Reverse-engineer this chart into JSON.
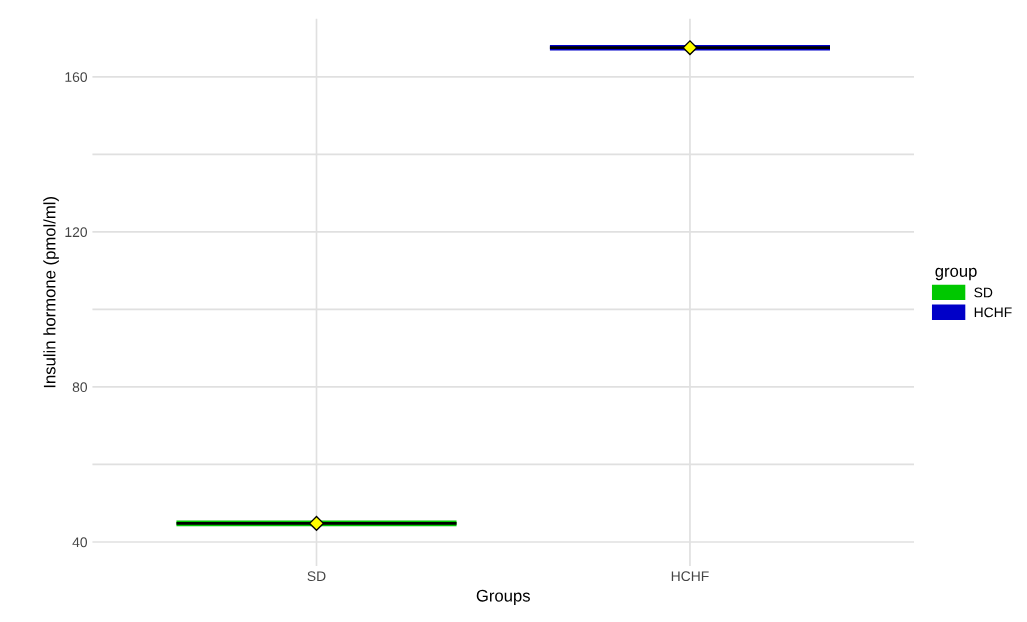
{
  "chart_data": {
    "type": "box",
    "xlabel": "Groups",
    "ylabel": "Insulin hormone (pmol/ml)",
    "legend_title": "group",
    "categories": [
      "SD",
      "HCHF"
    ],
    "series": [
      {
        "name": "SD",
        "color": "#00c800",
        "boxes": [
          {
            "low": 44.8,
            "q1": 44.8,
            "median": 44.8,
            "q3": 44.8,
            "high": 44.8,
            "mean": 44.8
          },
          null
        ]
      },
      {
        "name": "HCHF",
        "color": "#0000c8",
        "boxes": [
          null,
          {
            "low": 167.5,
            "q1": 167.5,
            "median": 167.5,
            "q3": 167.5,
            "high": 167.5,
            "mean": 167.5
          }
        ]
      }
    ],
    "ylim": [
      33.8,
      175
    ],
    "yticks": [
      40,
      {
        "value": 60,
        "label": null
      },
      80,
      {
        "value": 100,
        "label": null
      },
      120,
      {
        "value": 140,
        "label": null
      },
      160
    ],
    "grid": true,
    "legend": "right"
  }
}
